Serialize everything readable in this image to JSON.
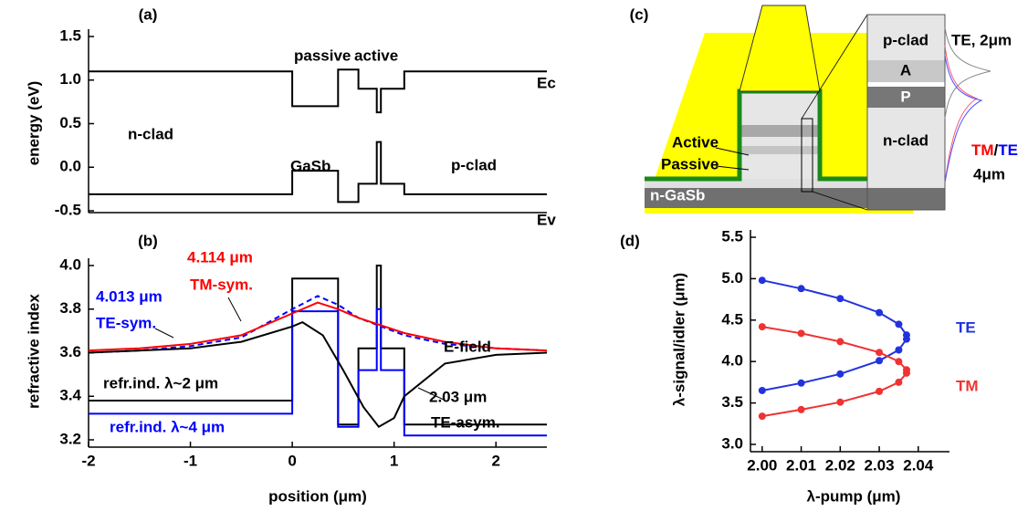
{
  "chart_data": [
    {
      "type": "line",
      "label": "(a)",
      "ylabel": "energy (eV)",
      "xlim": [
        -2,
        2.5
      ],
      "ylim": [
        -0.5,
        1.5
      ],
      "yticks": [
        {
          "value": -0.5,
          "label": "-0.5"
        },
        {
          "value": 0,
          "label": "0.0"
        },
        0.5,
        {
          "value": 1,
          "label": "1.0"
        },
        1.5
      ],
      "series": [
        {
          "name": "Ec",
          "color": "#000000",
          "x": [
            -2,
            0,
            0,
            0.45,
            0.45,
            0.65,
            0.65,
            0.83,
            0.83,
            0.87,
            0.87,
            1.1,
            1.1,
            2.5
          ],
          "values": [
            1.1,
            1.1,
            0.7,
            0.7,
            1.12,
            1.12,
            0.9,
            0.9,
            0.63,
            0.63,
            0.9,
            0.9,
            1.1,
            1.1
          ]
        },
        {
          "name": "Ev",
          "color": "#000000",
          "x": [
            -2,
            0,
            0,
            0.45,
            0.45,
            0.65,
            0.65,
            0.83,
            0.83,
            0.87,
            0.87,
            1.1,
            1.1,
            2.5
          ],
          "values": [
            -0.31,
            -0.31,
            -0.04,
            -0.04,
            -0.4,
            -0.4,
            -0.19,
            -0.19,
            0.29,
            0.29,
            -0.19,
            -0.19,
            -0.31,
            -0.31
          ]
        }
      ],
      "annotations": [
        {
          "text": "passive",
          "color": "#000000"
        },
        {
          "text": "active",
          "color": "#000000"
        },
        {
          "text": "n-clad",
          "color": "#000000"
        },
        {
          "text": "GaSb",
          "color": "#000000"
        },
        {
          "text": "p-clad",
          "color": "#000000"
        }
      ]
    },
    {
      "type": "line",
      "label": "(b)",
      "xlabel": "position (μm)",
      "ylabel": "refractive index",
      "xlim": [
        -2,
        2.5
      ],
      "xticks": [
        -2,
        -1,
        0,
        1,
        2
      ],
      "ylim": [
        3.2,
        4.0
      ],
      "yticks": [
        3.2,
        3.4,
        3.6,
        3.8,
        {
          "value": 4,
          "label": "4.0"
        }
      ],
      "series": [
        {
          "color": "#000000",
          "x": [
            -2,
            0,
            0,
            0.45,
            0.45,
            0.65,
            0.65,
            0.83,
            0.83,
            0.87,
            0.87,
            1.1,
            1.1,
            2.5
          ],
          "values": [
            3.38,
            3.38,
            3.94,
            3.94,
            3.27,
            3.27,
            3.62,
            3.62,
            4.0,
            4.0,
            3.62,
            3.62,
            3.27,
            3.27
          ]
        },
        {
          "color": "#0000ff",
          "x": [
            -2,
            0,
            0,
            0.45,
            0.45,
            0.65,
            0.65,
            0.83,
            0.83,
            0.87,
            0.87,
            1.1,
            1.1,
            2.5
          ],
          "values": [
            3.32,
            3.32,
            3.79,
            3.79,
            3.26,
            3.26,
            3.52,
            3.52,
            3.8,
            3.8,
            3.52,
            3.52,
            3.22,
            3.22
          ]
        },
        {
          "color": "#0000ff",
          "dash": true,
          "x": [
            -2,
            -1.5,
            -1,
            -0.5,
            0,
            0.25,
            0.45,
            0.65,
            1.1,
            1.5,
            2,
            2.5
          ],
          "values": [
            3.6,
            3.61,
            3.63,
            3.67,
            3.8,
            3.86,
            3.82,
            3.76,
            3.68,
            3.64,
            3.62,
            3.61
          ]
        },
        {
          "color": "#ff0000",
          "x": [
            -2,
            -1.5,
            -1,
            -0.5,
            0,
            0.25,
            0.45,
            0.65,
            1.1,
            1.5,
            2,
            2.5
          ],
          "values": [
            3.61,
            3.62,
            3.64,
            3.68,
            3.78,
            3.83,
            3.8,
            3.76,
            3.69,
            3.65,
            3.62,
            3.61
          ]
        },
        {
          "color": "#000000",
          "x": [
            -2,
            -1,
            -0.5,
            0,
            0.1,
            0.3,
            0.5,
            0.7,
            0.85,
            1.0,
            1.1,
            1.5,
            2,
            2.5
          ],
          "values": [
            3.6,
            3.62,
            3.65,
            3.72,
            3.74,
            3.68,
            3.52,
            3.35,
            3.26,
            3.3,
            3.4,
            3.55,
            3.59,
            3.6
          ]
        }
      ],
      "annotations": [
        {
          "text": "4.114 μm",
          "color": "#ff0000"
        },
        {
          "text": "TM-sym.",
          "color": "#ff0000"
        },
        {
          "text": "4.013 μm",
          "color": "#0000ff"
        },
        {
          "text": "TE-sym.",
          "color": "#0000ff"
        },
        {
          "text": "refr.ind. λ~2 μm",
          "color": "#000000"
        },
        {
          "text": "refr.ind. λ~4 μm",
          "color": "#0000ff"
        },
        {
          "text": "E-field",
          "color": "#000000"
        },
        {
          "text": "2.03 μm",
          "color": "#000000"
        },
        {
          "text": "TE-asym.",
          "color": "#000000"
        }
      ]
    },
    {
      "type": "line",
      "label": "(d)",
      "xlabel": "λ-pump (μm)",
      "ylabel": "λ-signal/idler (μm)",
      "markers": true,
      "xlim": [
        1.997,
        2.048
      ],
      "xticks": [
        {
          "value": 2,
          "label": "2.00"
        },
        2.01,
        2.02,
        2.03,
        2.04
      ],
      "ylim": [
        3.0,
        5.5
      ],
      "yticks": [
        {
          "value": 3,
          "label": "3.0"
        },
        3.5,
        {
          "value": 4,
          "label": "4.0"
        },
        4.5,
        {
          "value": 5,
          "label": "5.0"
        },
        5.5
      ],
      "series": [
        {
          "name": "TE",
          "color": "#2233dd",
          "x": [
            2.0,
            2.01,
            2.02,
            2.03,
            2.035,
            2.037,
            2.037,
            2.035,
            2.03,
            2.02,
            2.01,
            2.0
          ],
          "values": [
            4.98,
            4.88,
            4.76,
            4.59,
            4.45,
            4.32,
            4.27,
            4.14,
            4.01,
            3.85,
            3.74,
            3.65
          ]
        },
        {
          "name": "TM",
          "color": "#ee3333",
          "x": [
            2.0,
            2.01,
            2.02,
            2.03,
            2.035,
            2.037,
            2.037,
            2.035,
            2.03,
            2.02,
            2.01,
            2.0
          ],
          "values": [
            4.42,
            4.34,
            4.24,
            4.11,
            4.0,
            3.9,
            3.86,
            3.75,
            3.64,
            3.51,
            3.42,
            3.34
          ]
        }
      ]
    }
  ],
  "diagram": {
    "label": "(c)",
    "layers": [
      "p-clad",
      "A",
      "P",
      "n-clad"
    ],
    "ridge_labels": [
      "Active",
      "Passive"
    ],
    "substrate": "n-GaSb",
    "mode_labels": [
      "TE, 2μm",
      "TM",
      "/",
      "TE",
      "4μm"
    ]
  }
}
